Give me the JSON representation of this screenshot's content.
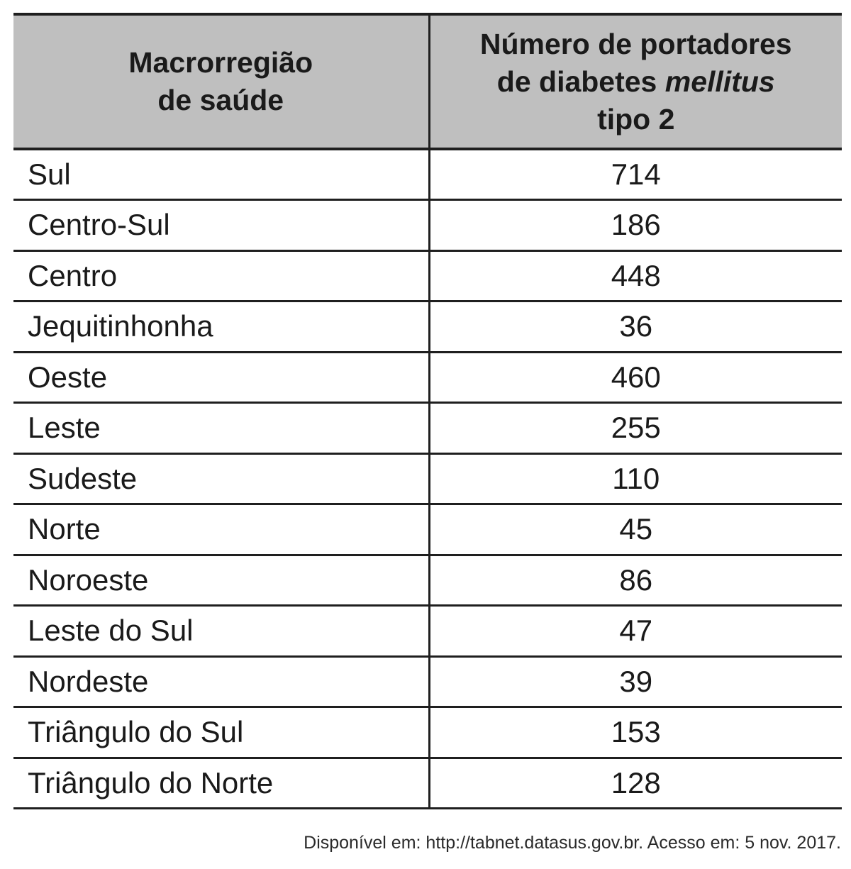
{
  "table": {
    "header": {
      "col1_line1": "Macrorregião",
      "col1_line2": "de saúde",
      "col2_line1": "Número de portadores",
      "col2_line2_prefix": "de diabetes ",
      "col2_line2_italic": "mellitus",
      "col2_line3": "tipo 2"
    },
    "rows": [
      {
        "region": "Sul",
        "count": "714"
      },
      {
        "region": "Centro-Sul",
        "count": "186"
      },
      {
        "region": "Centro",
        "count": "448"
      },
      {
        "region": "Jequitinhonha",
        "count": "36"
      },
      {
        "region": "Oeste",
        "count": "460"
      },
      {
        "region": "Leste",
        "count": "255"
      },
      {
        "region": "Sudeste",
        "count": "110"
      },
      {
        "region": "Norte",
        "count": "45"
      },
      {
        "region": "Noroeste",
        "count": "86"
      },
      {
        "region": "Leste do Sul",
        "count": "47"
      },
      {
        "region": "Nordeste",
        "count": "39"
      },
      {
        "region": "Triângulo do Sul",
        "count": "153"
      },
      {
        "region": "Triângulo do Norte",
        "count": "128"
      }
    ]
  },
  "source": "Disponível em: http://tabnet.datasus.gov.br. Acesso em: 5 nov. 2017.",
  "colors": {
    "header_background": "#bfbfbf",
    "text": "#1a1a1a",
    "rule": "#1f1f1f"
  }
}
